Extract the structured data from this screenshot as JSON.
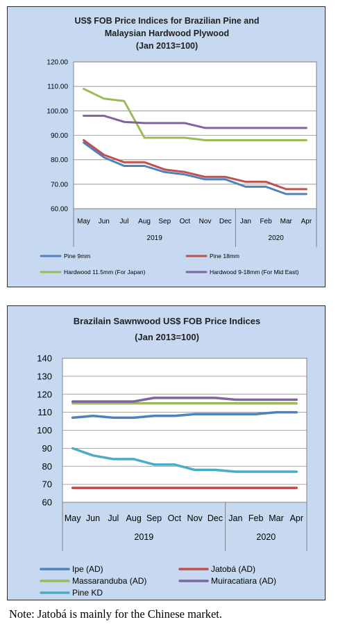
{
  "chart_data": [
    {
      "type": "line",
      "title": [
        "US$ FOB Price Indices for Brazilian Pine and",
        "Malaysian Hardwood Plywood",
        "(Jan 2013=100)"
      ],
      "x": [
        "May",
        "Jun",
        "Jul",
        "Aug",
        "Sep",
        "Oct",
        "Nov",
        "Dec",
        "Jan",
        "Feb",
        "Mar",
        "Apr"
      ],
      "x_groups": [
        {
          "label": "2019",
          "span": [
            0,
            7
          ]
        },
        {
          "label": "2020",
          "span": [
            8,
            11
          ]
        }
      ],
      "ylim": [
        60,
        120
      ],
      "yticks": [
        "60.00",
        "70.00",
        "80.00",
        "90.00",
        "100.00",
        "110.00",
        "120.00"
      ],
      "grid": true,
      "legend": "bottom",
      "series": [
        {
          "name": "Pine 9mm",
          "color": "#4f81bd",
          "values": [
            87,
            81,
            77.5,
            77.5,
            75,
            74,
            72,
            72,
            69,
            69,
            66,
            66
          ]
        },
        {
          "name": "Pine 18mm",
          "color": "#c0504d",
          "values": [
            88,
            82,
            79,
            79,
            76,
            75,
            73,
            73,
            71,
            71,
            68,
            68
          ]
        },
        {
          "name": "Hardwood 11.5mm (For Japan)",
          "color": "#9bbb59",
          "values": [
            109,
            105,
            104,
            89,
            89,
            89,
            88,
            88,
            88,
            88,
            88,
            88
          ]
        },
        {
          "name": "Hardwood 9-18mm (For Mid East)",
          "color": "#8064a2",
          "values": [
            98,
            98,
            95.5,
            95,
            95,
            95,
            93,
            93,
            93,
            93,
            93,
            93
          ]
        }
      ]
    },
    {
      "type": "line",
      "title": [
        "Brazilain Sawnwood US$ FOB Price Indices",
        "(Jan 2013=100)"
      ],
      "x": [
        "May",
        "Jun",
        "Jul",
        "Aug",
        "Sep",
        "Oct",
        "Nov",
        "Dec",
        "Jan",
        "Feb",
        "Mar",
        "Apr"
      ],
      "x_groups": [
        {
          "label": "2019",
          "span": [
            0,
            7
          ]
        },
        {
          "label": "2020",
          "span": [
            8,
            11
          ]
        }
      ],
      "ylim": [
        60,
        140
      ],
      "yticks": [
        "60",
        "70",
        "80",
        "90",
        "100",
        "110",
        "120",
        "130",
        "140"
      ],
      "grid": true,
      "legend": "bottom",
      "series": [
        {
          "name": "Ipe (AD)",
          "color": "#4f81bd",
          "values": [
            107,
            108,
            107,
            107,
            108,
            108,
            109,
            109,
            109,
            109,
            110,
            110
          ]
        },
        {
          "name": "Jatobá (AD)",
          "color": "#c0504d",
          "values": [
            68,
            68,
            68,
            68,
            68,
            68,
            68,
            68,
            68,
            68,
            68,
            68
          ]
        },
        {
          "name": "Massaranduba (AD)",
          "color": "#9bbb59",
          "values": [
            115,
            115,
            115,
            115,
            115,
            115,
            115,
            115,
            115,
            115,
            115,
            115
          ]
        },
        {
          "name": "Muiracatiara (AD)",
          "color": "#8064a2",
          "values": [
            116,
            116,
            116,
            116,
            118,
            118,
            118,
            118,
            117,
            117,
            117,
            117
          ]
        },
        {
          "name": "Pine KD",
          "color": "#4bacc6",
          "values": [
            90,
            86,
            84,
            84,
            81,
            81,
            78,
            78,
            77,
            77,
            77,
            77
          ]
        }
      ]
    }
  ],
  "note": "Note: Jatobá is mainly for the Chinese market."
}
